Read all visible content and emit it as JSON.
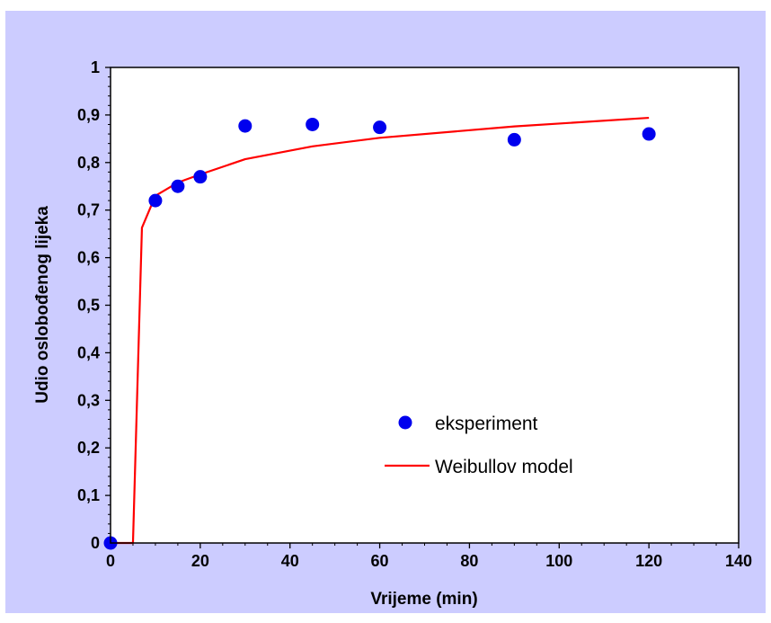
{
  "chart_data": {
    "type": "scatter",
    "xlabel": "Vrijeme (min)",
    "ylabel": "Udio oslobođenog lijeka",
    "xlim": [
      0,
      140
    ],
    "ylim": [
      0,
      1
    ],
    "x_ticks": [
      0,
      20,
      40,
      60,
      80,
      100,
      120,
      140
    ],
    "y_ticks": [
      0,
      0.1,
      0.2,
      0.3,
      0.4,
      0.5,
      0.6,
      0.7,
      0.8,
      0.9,
      1
    ],
    "x_tick_labels": [
      "0",
      "20",
      "40",
      "60",
      "80",
      "100",
      "120",
      "140"
    ],
    "y_tick_labels": [
      "0",
      "0,1",
      "0,2",
      "0,3",
      "0,4",
      "0,5",
      "0,6",
      "0,7",
      "0,8",
      "0,9",
      "1"
    ],
    "grid": false,
    "legend_position": "bottom-right",
    "series": [
      {
        "name": "eksperiment",
        "type": "scatter",
        "color": "#0000ee",
        "marker": "circle",
        "x": [
          0,
          10,
          15,
          20,
          30,
          45,
          60,
          90,
          120
        ],
        "y": [
          0,
          0.72,
          0.75,
          0.77,
          0.877,
          0.88,
          0.874,
          0.848,
          0.86
        ]
      },
      {
        "name": "Weibullov model",
        "type": "line",
        "color": "#ff0000",
        "x": [
          0,
          5,
          7,
          10,
          15,
          20,
          30,
          45,
          60,
          90,
          120
        ],
        "y": [
          0,
          0,
          0.663,
          0.73,
          0.758,
          0.775,
          0.807,
          0.834,
          0.852,
          0.876,
          0.894
        ]
      }
    ]
  },
  "colors": {
    "page_background": "#ccccff",
    "plot_background": "#ffffff",
    "axis": "#000000"
  }
}
